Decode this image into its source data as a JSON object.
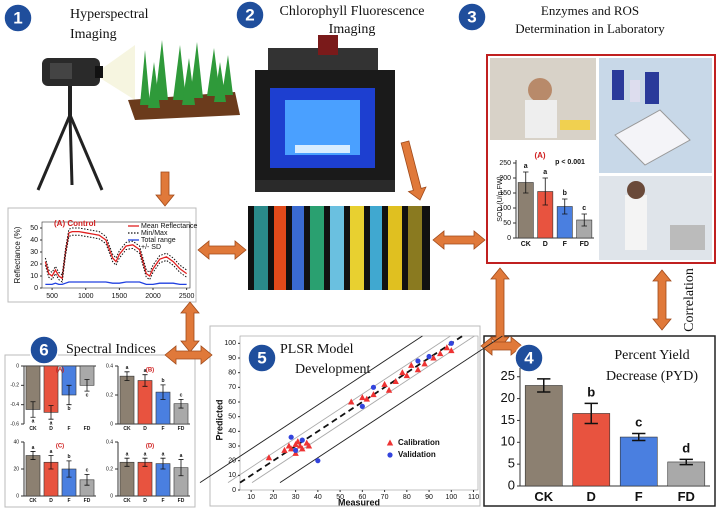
{
  "steps": [
    {
      "number": "1",
      "title": [
        "Hyperspectral",
        "Imaging"
      ]
    },
    {
      "number": "2",
      "title": [
        "Chlorophyll Fluorescence",
        "Imaging"
      ]
    },
    {
      "number": "3",
      "title": [
        "Enzymes and ROS",
        "Determination in Laboratory"
      ]
    },
    {
      "number": "4",
      "title": [
        "Percent Yield",
        "Decrease (PYD)"
      ]
    },
    {
      "number": "5",
      "title": [
        "PLSR Model",
        "Development"
      ]
    },
    {
      "number": "6",
      "title": [
        "Spectral Indices"
      ]
    }
  ],
  "correlation": "Correlation",
  "chart_data": [
    {
      "type": "line",
      "title": "(A) Control",
      "ylabel": "Reflectance (%)",
      "x": [
        400,
        450,
        500,
        550,
        600,
        650,
        700,
        750,
        800,
        900,
        1000,
        1100,
        1200,
        1300,
        1400,
        1450,
        1500,
        1600,
        1700,
        1800,
        1900,
        1950,
        2000,
        2100,
        2200,
        2300,
        2400,
        2500
      ],
      "series": [
        {
          "name": "Mean Reflectance",
          "color": "#e02020",
          "style": "solid",
          "values": [
            22,
            12,
            10,
            15,
            10,
            8,
            30,
            46,
            47,
            47,
            46,
            45,
            44,
            40,
            25,
            22,
            28,
            35,
            36,
            32,
            12,
            10,
            16,
            24,
            26,
            22,
            16,
            12
          ]
        },
        {
          "name": "Min/Max",
          "color": "#111111",
          "style": "dotted",
          "values": [
            25,
            15,
            13,
            18,
            13,
            11,
            33,
            49,
            50,
            50,
            49,
            48,
            47,
            43,
            28,
            25,
            31,
            38,
            39,
            35,
            15,
            13,
            19,
            27,
            29,
            25,
            19,
            15
          ],
          "low": [
            19,
            9,
            7,
            12,
            7,
            5,
            27,
            43,
            44,
            44,
            43,
            42,
            41,
            37,
            22,
            19,
            25,
            32,
            33,
            29,
            9,
            7,
            13,
            21,
            23,
            19,
            13,
            9
          ]
        },
        {
          "name": "Total range",
          "color": "#2040e0",
          "style": "solid",
          "values": [
            3,
            3,
            3,
            4,
            3,
            3,
            4,
            5,
            5,
            5,
            5,
            5,
            5,
            5,
            4,
            4,
            4,
            5,
            5,
            5,
            3,
            3,
            3,
            4,
            4,
            4,
            3,
            3
          ]
        }
      ],
      "legend_extra": "+/- SD",
      "xlim": [
        350,
        2550
      ],
      "xticks": [
        500,
        1000,
        1500,
        2000,
        2500
      ],
      "ylim": [
        0,
        55
      ],
      "yticks": [
        0,
        10,
        20,
        30,
        40,
        50
      ]
    },
    {
      "type": "bar",
      "title": "(A)",
      "ylabel": "SOD (U/g FW)",
      "annotation": "p < 0.001",
      "categories": [
        "CK",
        "D",
        "F",
        "FD"
      ],
      "values": [
        185,
        155,
        105,
        60
      ],
      "errors": [
        35,
        45,
        25,
        20
      ],
      "letters": [
        "a",
        "a",
        "b",
        "c"
      ],
      "colors": [
        "#8c8071",
        "#e8533f",
        "#4a7fe0",
        "#a9a9a9"
      ],
      "ylim": [
        0,
        260
      ],
      "yticks": [
        0,
        50,
        100,
        150,
        200,
        250
      ]
    },
    {
      "type": "scatter",
      "xlabel": "Measured",
      "ylabel": "Predicted",
      "series": [
        {
          "name": "Calibration",
          "color": "#ee3333",
          "marker": "triangle",
          "x": [
            18,
            25,
            27,
            28,
            30,
            30,
            31,
            32,
            33,
            35,
            36,
            55,
            60,
            62,
            65,
            70,
            72,
            75,
            78,
            80,
            82,
            85,
            88,
            92,
            95,
            98,
            100
          ],
          "values": [
            22,
            27,
            30,
            28,
            31,
            25,
            33,
            30,
            28,
            32,
            30,
            60,
            63,
            62,
            65,
            72,
            68,
            74,
            80,
            78,
            85,
            82,
            86,
            90,
            93,
            97,
            95
          ]
        },
        {
          "name": "Validation",
          "color": "#3344dd",
          "marker": "circle",
          "x": [
            28,
            30,
            33,
            40,
            60,
            65,
            85,
            90,
            100
          ],
          "values": [
            36,
            27,
            34,
            20,
            57,
            70,
            88,
            91,
            100
          ]
        }
      ],
      "xlim": [
        5,
        112
      ],
      "xticks": [
        10,
        20,
        30,
        40,
        50,
        60,
        70,
        80,
        90,
        100,
        110
      ],
      "ylim": [
        0,
        105
      ],
      "yticks": [
        0,
        10,
        20,
        30,
        40,
        50,
        60,
        70,
        80,
        90,
        100
      ]
    },
    {
      "type": "bar",
      "categories": [
        "CK",
        "D",
        "F",
        "FD"
      ],
      "values": [
        23,
        16.6,
        11.2,
        5.5
      ],
      "errors": [
        1.5,
        2.3,
        0.8,
        0.6
      ],
      "letters": [
        null,
        "b",
        "c",
        "d"
      ],
      "colors": [
        "#8c8071",
        "#e8533f",
        "#4a7fe0",
        "#a9a9a9"
      ],
      "ylim": [
        0,
        27
      ],
      "yticks": [
        0,
        5,
        10,
        15,
        20,
        25
      ]
    },
    {
      "type": "bar",
      "title": "(A)",
      "categories": [
        "CK",
        "D",
        "F",
        "FD"
      ],
      "values": [
        -0.45,
        -0.48,
        -0.3,
        -0.2
      ],
      "errors": [
        0.08,
        0.07,
        0.1,
        0.06
      ],
      "letters": [
        "a",
        "a",
        "b",
        "c"
      ],
      "colors": [
        "#8c8071",
        "#e8533f",
        "#4a7fe0",
        "#a9a9a9"
      ],
      "ylim": [
        -0.6,
        0
      ],
      "yticks": [
        -0.6,
        -0.4,
        -0.2,
        0
      ]
    },
    {
      "type": "bar",
      "title": "(B)",
      "categories": [
        "CK",
        "D",
        "F",
        "FD"
      ],
      "values": [
        0.33,
        0.3,
        0.22,
        0.14
      ],
      "errors": [
        0.03,
        0.04,
        0.05,
        0.03
      ],
      "letters": [
        "a",
        "a",
        "b",
        "c"
      ],
      "colors": [
        "#8c8071",
        "#e8533f",
        "#4a7fe0",
        "#a9a9a9"
      ],
      "ylim": [
        0,
        0.4
      ],
      "yticks": [
        0,
        0.2,
        0.4
      ]
    },
    {
      "type": "bar",
      "title": "(C)",
      "categories": [
        "CK",
        "D",
        "F",
        "FD"
      ],
      "values": [
        30,
        25,
        20,
        12
      ],
      "errors": [
        3,
        5,
        6,
        4
      ],
      "letters": [
        "a",
        "a",
        "b",
        "c"
      ],
      "colors": [
        "#8c8071",
        "#e8533f",
        "#4a7fe0",
        "#a9a9a9"
      ],
      "ylim": [
        0,
        40
      ],
      "yticks": [
        0,
        20,
        40
      ]
    },
    {
      "type": "bar",
      "title": "(D)",
      "categories": [
        "CK",
        "D",
        "F",
        "FD"
      ],
      "values": [
        0.25,
        0.25,
        0.24,
        0.21
      ],
      "errors": [
        0.03,
        0.03,
        0.04,
        0.06
      ],
      "letters": [
        "a",
        "a",
        "a",
        "a"
      ],
      "colors": [
        "#8c8071",
        "#e8533f",
        "#4a7fe0",
        "#a9a9a9"
      ],
      "ylim": [
        0,
        0.4
      ],
      "yticks": [
        0,
        0.2,
        0.4
      ]
    }
  ]
}
